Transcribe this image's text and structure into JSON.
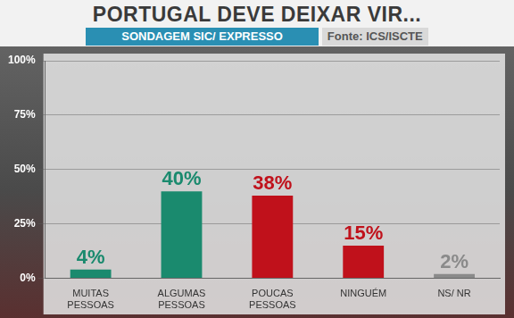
{
  "chart_data": {
    "type": "bar",
    "title": "PORTUGAL DEVE DEIXAR VIR...",
    "subtitle": "SONDAGEM SIC/ EXPRESSO",
    "source": "Fonte: ICS/ISCTE",
    "categories": [
      "MUITAS PESSOAS",
      "ALGUMAS PESSOAS",
      "POUCAS PESSOAS",
      "NINGUÉM",
      "NS/ NR"
    ],
    "values": [
      4,
      40,
      38,
      15,
      2
    ],
    "value_labels": [
      "4%",
      "40%",
      "38%",
      "15%",
      "2%"
    ],
    "colors": [
      "#1a8a6e",
      "#1a8a6e",
      "#c0111b",
      "#c0111b",
      "#8a8a8a"
    ],
    "data_labels": true,
    "ylim": [
      0,
      100
    ],
    "yticks": [
      {
        "value": 0,
        "label": "0%"
      },
      {
        "value": 25,
        "label": "25%"
      },
      {
        "value": 50,
        "label": "50%"
      },
      {
        "value": 75,
        "label": "75%"
      },
      {
        "value": 100,
        "label": "100%"
      }
    ],
    "grid": true
  }
}
